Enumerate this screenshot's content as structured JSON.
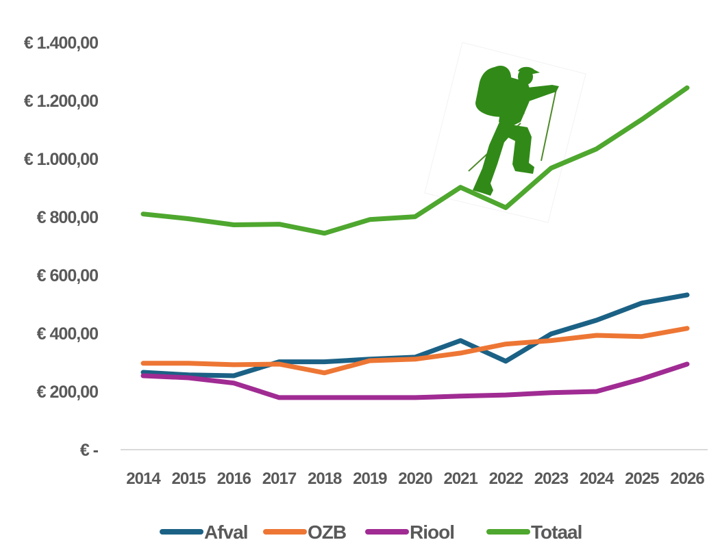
{
  "chart_data": {
    "type": "line",
    "title": "",
    "xlabel": "",
    "ylabel": "",
    "x": [
      "2014",
      "2015",
      "2016",
      "2017",
      "2018",
      "2019",
      "2020",
      "2021",
      "2022",
      "2023",
      "2024",
      "2025",
      "2026"
    ],
    "ylim": [
      0,
      1400
    ],
    "yticks": [
      0,
      200,
      400,
      600,
      800,
      1000,
      1200,
      1400
    ],
    "ytick_labels": [
      "€ -",
      "€ 200,00",
      "€ 400,00",
      "€ 600,00",
      "€ 800,00",
      "€ 1.000,00",
      "€ 1.200,00",
      "€ 1.400,00"
    ],
    "grid": false,
    "legend_position": "bottom",
    "series": [
      {
        "name": "Afval",
        "color": "#1b6185",
        "values": [
          266,
          257,
          254,
          302,
          302,
          311,
          318,
          375,
          304,
          398,
          445,
          504,
          532
        ]
      },
      {
        "name": "OZB",
        "color": "#ed7634",
        "values": [
          297,
          297,
          292,
          294,
          264,
          306,
          311,
          332,
          363,
          375,
          393,
          389,
          417
        ]
      },
      {
        "name": "Riool",
        "color": "#a02b93",
        "values": [
          254,
          247,
          229,
          179,
          179,
          179,
          179,
          184,
          188,
          196,
          200,
          243,
          294
        ]
      },
      {
        "name": "Totaal",
        "color": "#4ea72e",
        "values": [
          810,
          794,
          773,
          775,
          744,
          791,
          801,
          902,
          832,
          968,
          1034,
          1135,
          1244
        ]
      }
    ],
    "annotations": [
      {
        "type": "image",
        "description": "hiker-with-backpack-silhouette",
        "color": "#318a18"
      }
    ]
  }
}
